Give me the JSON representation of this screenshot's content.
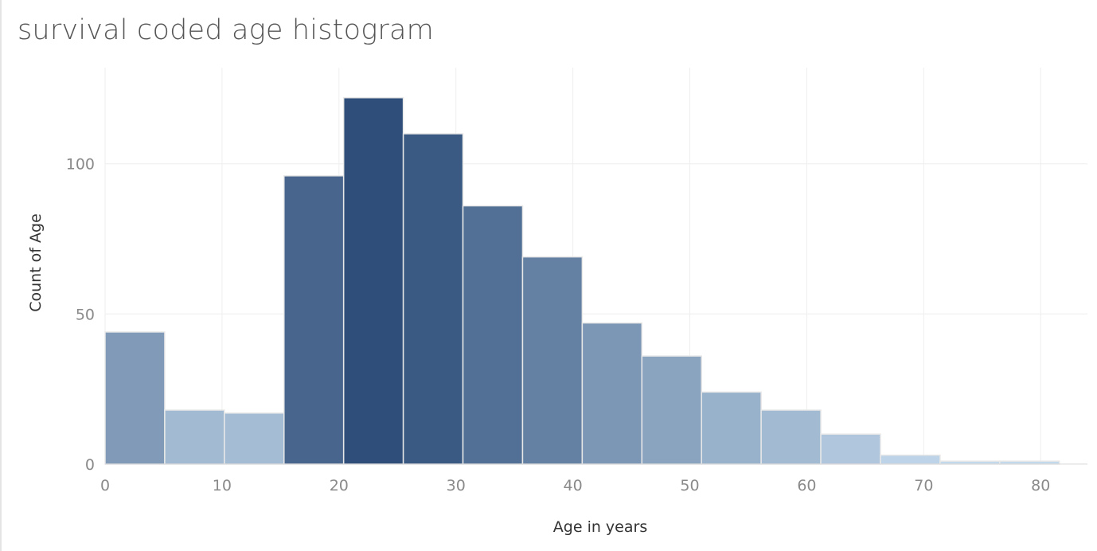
{
  "chart_data": {
    "type": "bar",
    "title": "survival coded age histogram",
    "xlabel": "Age in years",
    "ylabel": "Count of Age",
    "bin_width": 5.1,
    "bins_start": [
      0,
      5.1,
      10.2,
      15.3,
      20.4,
      25.5,
      30.6,
      35.7,
      40.8,
      45.9,
      51.0,
      56.1,
      61.2,
      66.3,
      71.4,
      76.5
    ],
    "values": [
      44,
      18,
      17,
      96,
      122,
      110,
      86,
      69,
      47,
      36,
      24,
      18,
      10,
      3,
      1,
      1
    ],
    "xlim": [
      0,
      84
    ],
    "ylim": [
      -4,
      132
    ],
    "x_ticks": [
      "0",
      "10",
      "20",
      "30",
      "40",
      "50",
      "60",
      "70",
      "80"
    ],
    "y_ticks": [
      "0",
      "50",
      "100"
    ],
    "grid": true,
    "color_scale": [
      "#c6dcee",
      "#2f4f7a"
    ],
    "legend": "none"
  }
}
